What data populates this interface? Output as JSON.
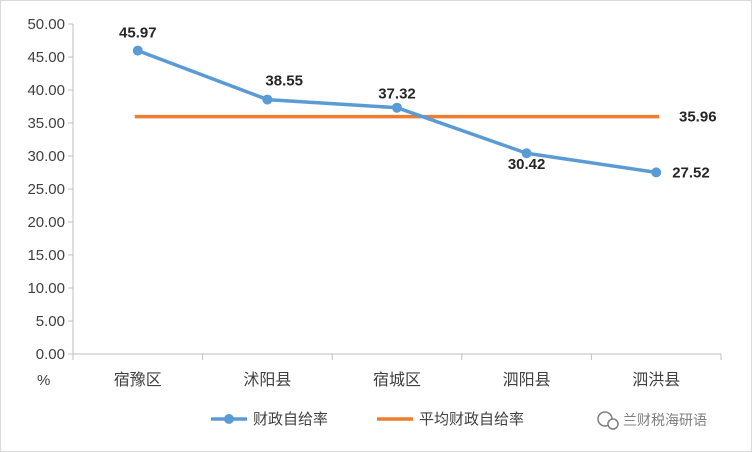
{
  "chart_data": {
    "type": "line",
    "categories": [
      "宿豫区",
      "沭阳县",
      "宿城区",
      "泗阳县",
      "泗洪县"
    ],
    "series": [
      {
        "name": "财政自给率",
        "values": [
          45.97,
          38.55,
          37.32,
          30.42,
          27.52
        ],
        "color": "#5b9bd5",
        "markers": true,
        "data_labels": [
          "45.97",
          "38.55",
          "37.32",
          "30.42",
          "27.52"
        ]
      },
      {
        "name": "平均财政自给率",
        "values": [
          35.96,
          35.96,
          35.96,
          35.96,
          35.96
        ],
        "color": "#ed7d31",
        "markers": false,
        "data_labels": [
          "35.96"
        ]
      }
    ],
    "y_ticks": [
      "0.00",
      "5.00",
      "10.00",
      "15.00",
      "20.00",
      "25.00",
      "30.00",
      "35.00",
      "40.00",
      "45.00",
      "50.00"
    ],
    "ylim": [
      0,
      50
    ],
    "y_unit": "%",
    "grid": false,
    "legend_position": "bottom"
  },
  "watermark": {
    "text": "兰财税海研语",
    "icon": "wechat-icon"
  }
}
